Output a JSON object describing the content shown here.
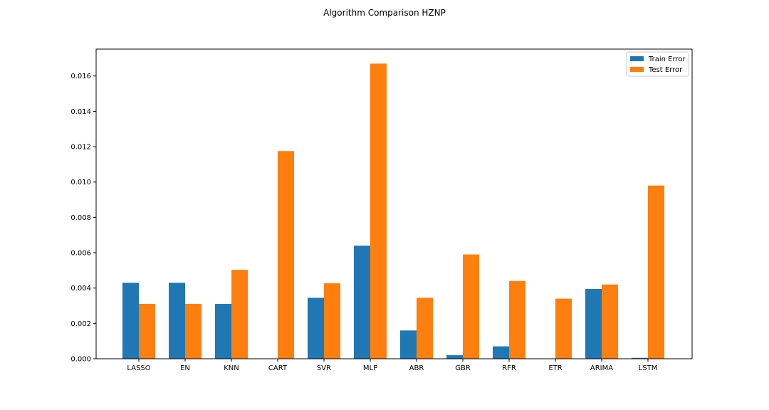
{
  "chart_data": {
    "type": "bar",
    "title": "Algorithm Comparison HZNP",
    "xlabel": "",
    "ylabel": "",
    "categories": [
      "LASSO",
      "EN",
      "KNN",
      "CART",
      "SVR",
      "MLP",
      "ABR",
      "GBR",
      "RFR",
      "ETR",
      "ARIMA",
      "LSTM"
    ],
    "series": [
      {
        "name": "Train Error",
        "color": "#1f77b4",
        "values": [
          0.0043,
          0.0043,
          0.0031,
          0.0,
          0.00345,
          0.0064,
          0.0016,
          0.0002,
          0.0007,
          0.0,
          0.00395,
          5e-05
        ]
      },
      {
        "name": "Test Error",
        "color": "#ff7f0e",
        "values": [
          0.0031,
          0.0031,
          0.00503,
          0.01175,
          0.00427,
          0.0167,
          0.00345,
          0.0059,
          0.0044,
          0.0034,
          0.0042,
          0.0098
        ]
      }
    ],
    "yticks": [
      "0.000",
      "0.002",
      "0.004",
      "0.006",
      "0.008",
      "0.010",
      "0.012",
      "0.014",
      "0.016"
    ],
    "ytick_values": [
      0.0,
      0.002,
      0.004,
      0.006,
      0.008,
      0.01,
      0.012,
      0.014,
      0.016
    ],
    "ylim": [
      0.0,
      0.01752
    ],
    "legend_position": "top-right",
    "grid": false
  }
}
